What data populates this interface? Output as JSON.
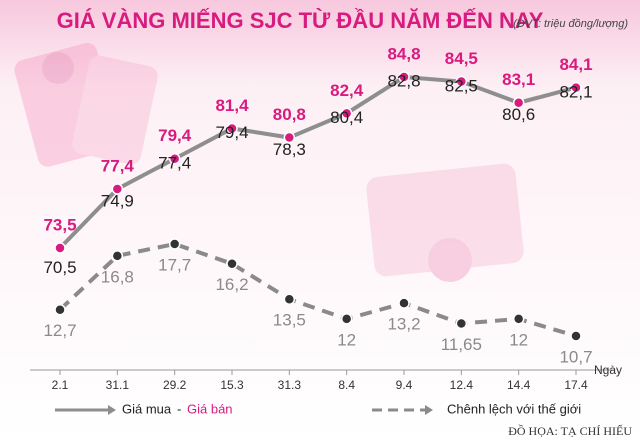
{
  "chart_data": {
    "type": "line",
    "title": "GIÁ VÀNG MIẾNG SJC TỪ ĐẦU NĂM ĐẾN NAY",
    "subtitle": "(ĐVT: triệu đồng/lượng)",
    "x_label": "Ngày",
    "categories": [
      "2.1",
      "31.1",
      "29.2",
      "15.3",
      "31.3",
      "8.4",
      "9.4",
      "12.4",
      "14.4",
      "17.4"
    ],
    "line_color": "#8e8e8e",
    "series": [
      {
        "name": "Giá mua",
        "color": "#222222",
        "values": [
          70.5,
          74.9,
          77.4,
          79.4,
          78.3,
          80.4,
          82.8,
          82.5,
          80.6,
          82.1
        ],
        "value_labels": [
          "70,5",
          "74,9",
          "77,4",
          "79,4",
          "78,3",
          "80,4",
          "82,8",
          "82,5",
          "80,6",
          "82,1"
        ]
      },
      {
        "name": "Giá bán",
        "color": "#d81b7f",
        "values": [
          73.5,
          77.4,
          79.4,
          81.4,
          80.8,
          82.4,
          84.8,
          84.5,
          83.1,
          84.1
        ],
        "value_labels": [
          "73,5",
          "77,4",
          "79,4",
          "81,4",
          "80,8",
          "82,4",
          "84,8",
          "84,5",
          "83,1",
          "84,1"
        ]
      },
      {
        "name": "Chênh lệch với thế giới",
        "color": "#8a8a8a",
        "values": [
          12.7,
          16.8,
          17.7,
          16.2,
          13.5,
          12,
          13.2,
          11.65,
          12,
          10.7
        ],
        "value_labels": [
          "12,7",
          "16,8",
          "17,7",
          "16,2",
          "13,5",
          "12",
          "13,2",
          "11,65",
          "12",
          "10,7"
        ]
      }
    ],
    "legend_separator": "-",
    "credit": "ĐỒ HỌA: TẠ CHÍ HIẾU"
  }
}
